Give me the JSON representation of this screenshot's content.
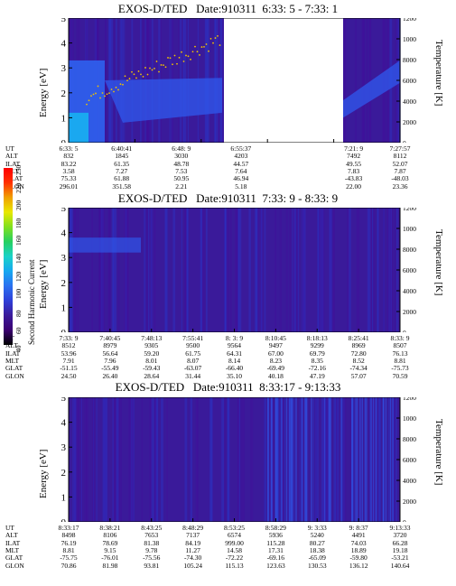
{
  "chart_data": [
    {
      "type": "heatmap",
      "title": "EXOS-D/TED   Date:910311  6:33: 5 - 7:33: 1",
      "ylabel": "Energy [eV]",
      "y2label": "Temperature [K]",
      "ylim": [
        0,
        5
      ],
      "y2lim": [
        0,
        12000
      ],
      "yticks": [
        "0",
        "1",
        "2",
        "3",
        "4",
        "5"
      ],
      "y2ticks": [
        "0",
        "2000",
        "4000",
        "6000",
        "8000",
        "10000",
        "12000"
      ],
      "data_gap": true,
      "ephemeris": [
        {
          "label": "UT",
          "values": [
            "6:33: 5",
            "6:40:41",
            "6:48: 9",
            "6:55:37",
            "7:21: 9",
            "7:27:57"
          ]
        },
        {
          "label": "ALT",
          "values": [
            "832",
            "1845",
            "3030",
            "4203",
            "7492",
            "8112"
          ]
        },
        {
          "label": "ILAT",
          "values": [
            "83.22",
            "61.35",
            "48.78",
            "44.57",
            "49.55",
            "52.07"
          ]
        },
        {
          "label": "MLT",
          "values": [
            "3.58",
            "7.27",
            "7.53",
            "7.64",
            "7.83",
            "7.87"
          ]
        },
        {
          "label": "GLAT",
          "values": [
            "75.33",
            "61.88",
            "50.95",
            "46.94",
            "-43.83",
            "-48.03"
          ]
        },
        {
          "label": "GLON",
          "values": [
            "296.01",
            "351.58",
            "2.21",
            "5.18",
            "22.00",
            "23.36"
          ]
        }
      ]
    },
    {
      "type": "heatmap",
      "title": "EXOS-D/TED   Date:910311  7:33: 9 - 8:33: 9",
      "ylabel": "Energy [eV]",
      "y2label": "Temperature [K]",
      "ylim": [
        0,
        5
      ],
      "y2lim": [
        0,
        12000
      ],
      "yticks": [
        "0",
        "1",
        "2",
        "3",
        "4",
        "5"
      ],
      "y2ticks": [
        "0",
        "2000",
        "4000",
        "6000",
        "8000",
        "10000",
        "12000"
      ],
      "ephemeris": [
        {
          "label": "UT",
          "values": [
            "7:33: 9",
            "7:40:45",
            "7:48:13",
            "7:55:41",
            "8: 3: 9",
            "8:10:45",
            "8:18:13",
            "8:25:41",
            "8:33: 9"
          ]
        },
        {
          "label": "ALT",
          "values": [
            "8512",
            "8979",
            "9305",
            "9500",
            "9564",
            "9497",
            "9299",
            "8969",
            "8507"
          ]
        },
        {
          "label": "ILAT",
          "values": [
            "53.96",
            "56.64",
            "59.20",
            "61.75",
            "64.31",
            "67.00",
            "69.79",
            "72.80",
            "76.13"
          ]
        },
        {
          "label": "MLT",
          "values": [
            "7.91",
            "7.96",
            "8.01",
            "8.07",
            "8.14",
            "8.23",
            "8.35",
            "8.52",
            "8.81"
          ]
        },
        {
          "label": "GLAT",
          "values": [
            "-51.15",
            "-55.49",
            "-59.43",
            "-63.07",
            "-66.40",
            "-69.49",
            "-72.16",
            "-74.34",
            "-75.73"
          ]
        },
        {
          "label": "GLON",
          "values": [
            "24.50",
            "26.40",
            "28.64",
            "31.44",
            "35.10",
            "40.18",
            "47.19",
            "57.07",
            "70.59"
          ]
        }
      ]
    },
    {
      "type": "heatmap",
      "title": "EXOS-D/TED   Date:910311  8:33:17 - 9:13:33",
      "ylabel": "Energy [eV]",
      "y2label": "Temperature [K]",
      "ylim": [
        0,
        5
      ],
      "y2lim": [
        0,
        12000
      ],
      "yticks": [
        "0",
        "1",
        "2",
        "3",
        "4",
        "5"
      ],
      "y2ticks": [
        "0",
        "2000",
        "4000",
        "6000",
        "8000",
        "10000",
        "12000"
      ],
      "ephemeris": [
        {
          "label": "UT",
          "values": [
            "8:33:17",
            "8:38:21",
            "8:43:25",
            "8:48:29",
            "8:53:25",
            "8:58:29",
            "9: 3:33",
            "9: 8:37",
            "9:13:33"
          ]
        },
        {
          "label": "ALT",
          "values": [
            "8498",
            "8106",
            "7653",
            "7137",
            "6574",
            "5936",
            "5240",
            "4491",
            "3720"
          ]
        },
        {
          "label": "ILAT",
          "values": [
            "76.19",
            "78.69",
            "81.38",
            "84.19",
            "999.00",
            "115.28",
            "80.27",
            "74.03",
            "66.28"
          ]
        },
        {
          "label": "MLT",
          "values": [
            "8.81",
            "9.15",
            "9.78",
            "11.27",
            "14.58",
            "17.31",
            "18.38",
            "18.89",
            "19.18"
          ]
        },
        {
          "label": "GLAT",
          "values": [
            "-75.75",
            "-76.01",
            "-75.56",
            "-74.30",
            "-72.22",
            "-69.16",
            "-65.09",
            "-59.80",
            "-53.21"
          ]
        },
        {
          "label": "GLON",
          "values": [
            "70.86",
            "81.98",
            "93.81",
            "105.24",
            "115.13",
            "123.63",
            "130.53",
            "136.12",
            "140.64"
          ]
        }
      ]
    }
  ],
  "colorbar": {
    "label": "Second Harmonic Current",
    "ticks": [
      "40",
      "60",
      "80",
      "100",
      "120",
      "140",
      "160",
      "180",
      "200",
      "220",
      "250"
    ],
    "colors": [
      "#000000",
      "#3a0070",
      "#3a1a9a",
      "#2f3fd8",
      "#2a70f0",
      "#16a8f0",
      "#1ad2c8",
      "#26d060",
      "#80e020",
      "#e8e800",
      "#f0a000",
      "#ff3000",
      "#ff0000"
    ]
  },
  "colors": {
    "background": "#3a1a9a",
    "band": "#2f55e8",
    "gap": "#ffffff",
    "temp_dots": "#f0c000"
  }
}
